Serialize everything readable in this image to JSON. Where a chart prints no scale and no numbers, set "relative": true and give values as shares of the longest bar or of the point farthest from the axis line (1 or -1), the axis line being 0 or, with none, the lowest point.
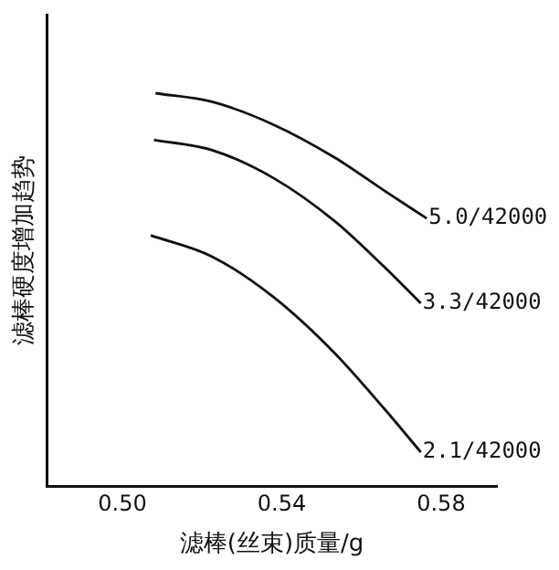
{
  "chart_data": {
    "type": "line",
    "relative": true,
    "xlabel": "滤棒(丝束)质量/g",
    "ylabel": "滤棒硬度增加趋势",
    "xlim": [
      0.481,
      0.594
    ],
    "xticks": [
      {
        "value": 0.5,
        "label": "0.50"
      },
      {
        "value": 0.54,
        "label": "0.54"
      },
      {
        "value": 0.58,
        "label": "0.58"
      }
    ],
    "grid": false,
    "legend": false,
    "marker": "none",
    "line_style": "solid",
    "series": [
      {
        "name": "5.0/42000",
        "color": "#111111",
        "x": [
          0.5083,
          0.5225,
          0.5379,
          0.5533,
          0.5657,
          0.5764
        ],
        "values": [
          1.0,
          0.978,
          0.92,
          0.836,
          0.752,
          0.681
        ]
      },
      {
        "name": "3.3/42000",
        "color": "#111111",
        "x": [
          0.5079,
          0.5225,
          0.5379,
          0.5533,
          0.5657,
          0.5749
        ],
        "values": [
          0.881,
          0.855,
          0.784,
          0.674,
          0.558,
          0.465
        ]
      },
      {
        "name": "2.1/42000",
        "color": "#111111",
        "x": [
          0.5071,
          0.5225,
          0.5379,
          0.5533,
          0.5657,
          0.5749
        ],
        "values": [
          0.638,
          0.584,
          0.481,
          0.338,
          0.197,
          0.086
        ]
      }
    ]
  }
}
